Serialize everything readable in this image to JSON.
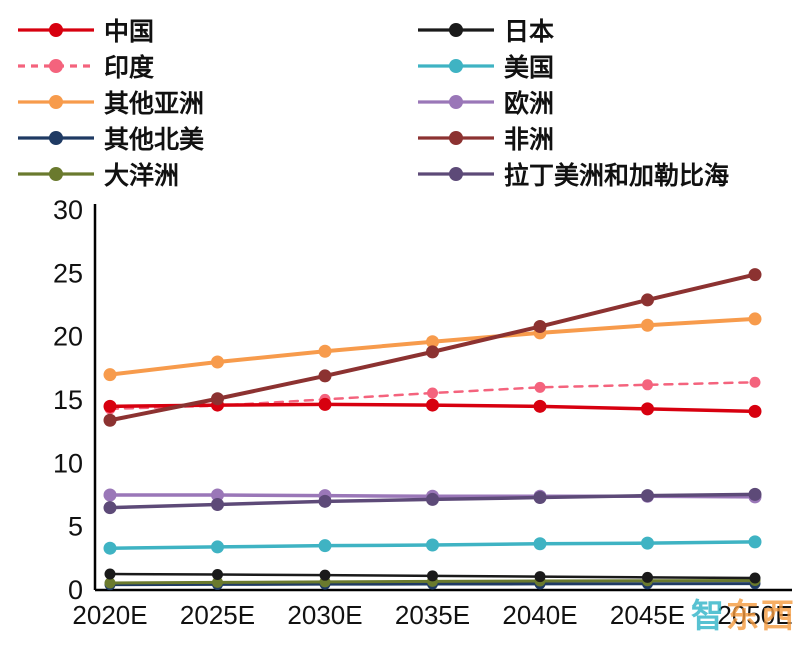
{
  "watermark": {
    "text_primary": "智",
    "text_secondary": "东西",
    "primary_color": "#2fb3c7",
    "secondary_color": "#f59a3e"
  },
  "chart_data": {
    "type": "line",
    "title": "",
    "xlabel": "",
    "ylabel": "",
    "categories": [
      "2020E",
      "2025E",
      "2030E",
      "2035E",
      "2040E",
      "2045E",
      "2050E"
    ],
    "ylim": [
      0,
      30
    ],
    "yticks": [
      0,
      5,
      10,
      15,
      20,
      25,
      30
    ],
    "grid": false,
    "legend_position": "top",
    "series": [
      {
        "name": "中国",
        "color": "#d7000f",
        "dashed": false,
        "values": [
          14.5,
          14.6,
          14.65,
          14.6,
          14.5,
          14.3,
          14.1
        ]
      },
      {
        "name": "日本",
        "color": "#1a1a1a",
        "dashed": false,
        "values": [
          1.26,
          1.22,
          1.17,
          1.12,
          1.06,
          1.0,
          0.95
        ]
      },
      {
        "name": "印度",
        "color": "#f4637d",
        "dashed": true,
        "values": [
          14.3,
          14.55,
          15.05,
          15.55,
          16.0,
          16.2,
          16.4
        ]
      },
      {
        "name": "美国",
        "color": "#3fb3c3",
        "dashed": false,
        "values": [
          3.3,
          3.4,
          3.5,
          3.55,
          3.65,
          3.7,
          3.8
        ]
      },
      {
        "name": "其他亚洲",
        "color": "#f79b4c",
        "dashed": false,
        "values": [
          17.0,
          18.0,
          18.85,
          19.6,
          20.3,
          20.9,
          21.4
        ]
      },
      {
        "name": "欧洲",
        "color": "#9a77b8",
        "dashed": false,
        "values": [
          7.5,
          7.5,
          7.45,
          7.4,
          7.4,
          7.4,
          7.35
        ]
      },
      {
        "name": "其他北美",
        "color": "#1f3a63",
        "dashed": false,
        "values": [
          0.42,
          0.44,
          0.46,
          0.47,
          0.48,
          0.49,
          0.5
        ]
      },
      {
        "name": "非洲",
        "color": "#8c3231",
        "dashed": false,
        "values": [
          13.4,
          15.1,
          16.9,
          18.8,
          20.8,
          22.9,
          24.9
        ]
      },
      {
        "name": "大洋洲",
        "color": "#6a7a2e",
        "dashed": false,
        "values": [
          0.55,
          0.6,
          0.64,
          0.68,
          0.71,
          0.73,
          0.75
        ]
      },
      {
        "name": "拉丁美洲和加勒比海",
        "color": "#5d4a78",
        "dashed": false,
        "values": [
          6.5,
          6.75,
          7.0,
          7.15,
          7.3,
          7.45,
          7.55
        ]
      }
    ]
  }
}
